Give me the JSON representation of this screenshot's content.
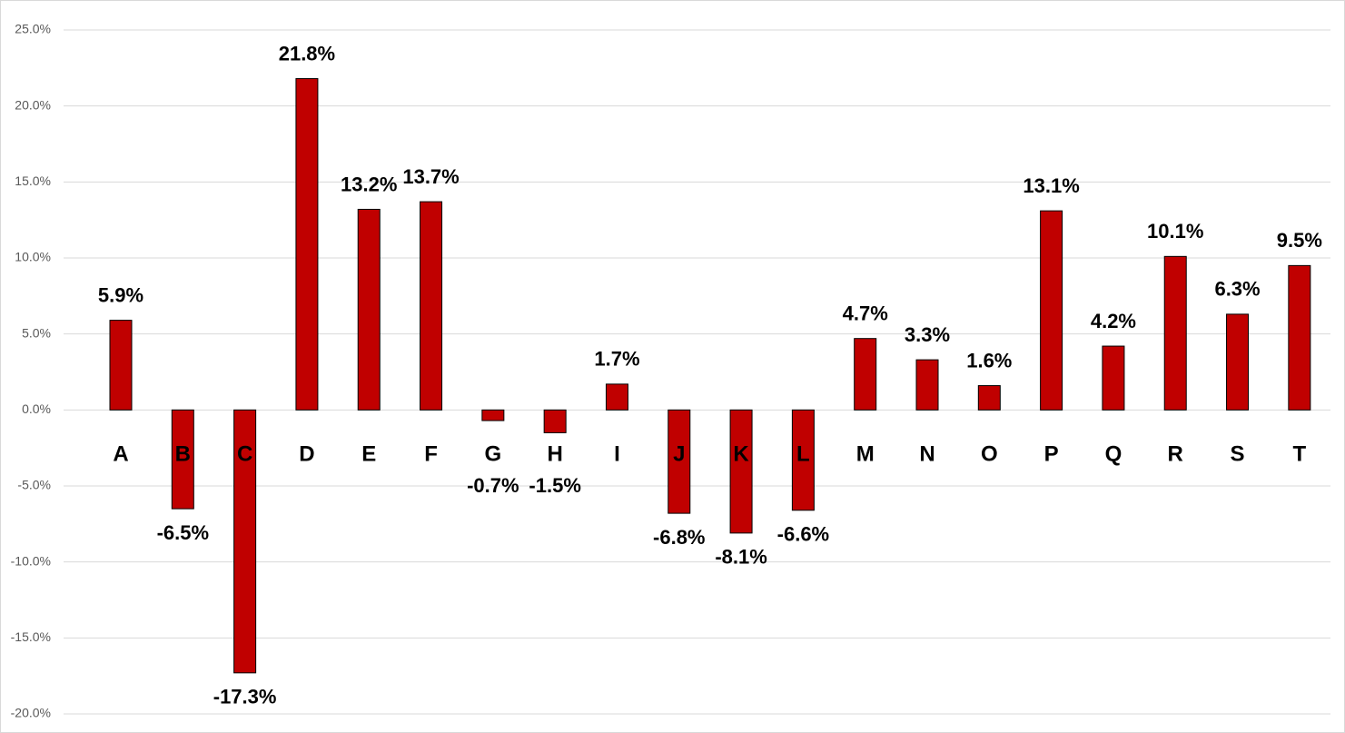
{
  "chart_data": {
    "type": "bar",
    "categories": [
      "A",
      "B",
      "C",
      "D",
      "E",
      "F",
      "G",
      "H",
      "I",
      "J",
      "K",
      "L",
      "M",
      "N",
      "O",
      "P",
      "Q",
      "R",
      "S",
      "T"
    ],
    "values": [
      5.9,
      -6.5,
      -17.3,
      21.8,
      13.2,
      13.7,
      -0.7,
      -1.5,
      1.7,
      -6.8,
      -8.1,
      -6.6,
      4.7,
      3.3,
      1.6,
      13.1,
      4.2,
      10.1,
      6.3,
      9.5
    ],
    "value_labels": [
      "5.9%",
      "-6.5%",
      "-17.3%",
      "21.8%",
      "13.2%",
      "13.7%",
      "-0.7%",
      "-1.5%",
      "1.7%",
      "-6.8%",
      "-8.1%",
      "-6.6%",
      "4.7%",
      "3.3%",
      "1.6%",
      "13.1%",
      "4.2%",
      "10.1%",
      "6.3%",
      "9.5%"
    ],
    "color": "#c00000",
    "ylim": [
      -20,
      25
    ],
    "yticks": [
      {
        "value": -20,
        "label": "-20.0%"
      },
      {
        "value": -15,
        "label": "-15.0%"
      },
      {
        "value": -10,
        "label": "-10.0%"
      },
      {
        "value": -5,
        "label": "-5.0%"
      },
      {
        "value": 0,
        "label": "0.0%"
      },
      {
        "value": 5,
        "label": "5.0%"
      },
      {
        "value": 10,
        "label": "10.0%"
      },
      {
        "value": 15,
        "label": "15.0%"
      },
      {
        "value": 20,
        "label": "20.0%"
      },
      {
        "value": 25,
        "label": "25.0%"
      }
    ],
    "grid": true
  }
}
